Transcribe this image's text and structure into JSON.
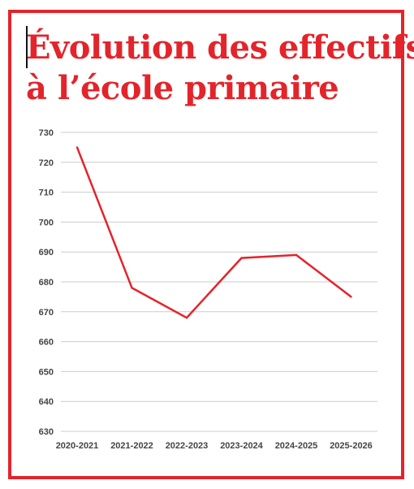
{
  "page": {
    "title_line1": "Évolution des effectifs",
    "title_line2": "à l’école primaire"
  },
  "colors": {
    "accent": "#e3242b",
    "grid": "#cccccc",
    "tick_text": "#444444"
  },
  "chart_data": {
    "type": "line",
    "title": "Évolution des effectifs à l’école primaire",
    "xlabel": "",
    "ylabel": "",
    "categories": [
      "2020-2021",
      "2021-2022",
      "2022-2023",
      "2023-2024",
      "2024-2025",
      "2025-2026"
    ],
    "series": [
      {
        "values": [
          725,
          678,
          668,
          688,
          689,
          675
        ]
      }
    ],
    "ylim": [
      630,
      730
    ],
    "yticks": [
      730,
      720,
      710,
      700,
      690,
      680,
      670,
      660,
      650,
      640,
      630
    ],
    "grid": true,
    "legend": "none"
  }
}
